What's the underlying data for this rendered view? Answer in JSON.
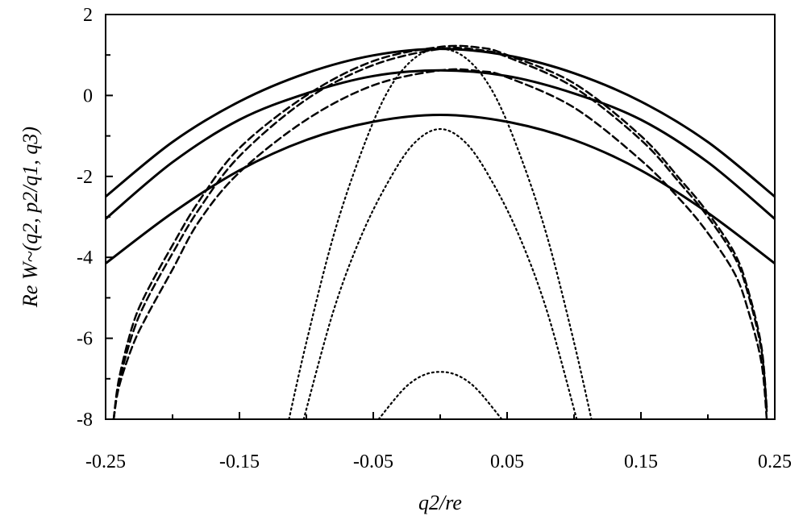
{
  "chart_data": {
    "type": "line",
    "title": "",
    "xlabel": "q2/re",
    "ylabel": "Re W~(q2, p2/q1, q3)",
    "xlim": [
      -0.25,
      0.25
    ],
    "ylim": [
      -8,
      2
    ],
    "xticks": [
      "-0.25",
      "-0.15",
      "-0.05",
      "0.05",
      "0.15",
      "0.25"
    ],
    "yticks": [
      "-8",
      "-6",
      "-4",
      "-2",
      "0",
      "2"
    ],
    "grid": false,
    "legend": "none",
    "series": [
      {
        "style": "solid",
        "x": [
          -0.25,
          -0.2,
          -0.15,
          -0.1,
          -0.05,
          0,
          0.05,
          0.1,
          0.15,
          0.2,
          0.25
        ],
        "y": [
          -2.5,
          -1.15,
          -0.15,
          0.55,
          0.99,
          1.15,
          0.99,
          0.55,
          -0.15,
          -1.15,
          -2.5
        ]
      },
      {
        "style": "solid",
        "x": [
          -0.25,
          -0.2,
          -0.15,
          -0.1,
          -0.05,
          0,
          0.05,
          0.1,
          0.15,
          0.2,
          0.25
        ],
        "y": [
          -3.05,
          -1.65,
          -0.6,
          0.05,
          0.48,
          0.62,
          0.48,
          0.05,
          -0.6,
          -1.65,
          -3.05
        ]
      },
      {
        "style": "solid",
        "x": [
          -0.25,
          -0.2,
          -0.15,
          -0.1,
          -0.05,
          0,
          0.05,
          0.1,
          0.15,
          0.2,
          0.25
        ],
        "y": [
          -4.15,
          -2.9,
          -1.85,
          -1.1,
          -0.65,
          -0.48,
          -0.65,
          -1.1,
          -1.85,
          -2.9,
          -4.15
        ]
      },
      {
        "style": "dashed",
        "x": [
          -0.244,
          -0.24,
          -0.23,
          -0.22,
          -0.2,
          -0.18,
          -0.15,
          -0.1,
          -0.05,
          0,
          0.03,
          0.05,
          0.1,
          0.15,
          0.18,
          0.2,
          0.22,
          0.23,
          0.24,
          0.244
        ],
        "y": [
          -8,
          -7.1,
          -5.9,
          -5.1,
          -3.9,
          -2.8,
          -1.5,
          -0.1,
          0.75,
          1.15,
          1.12,
          0.95,
          0.2,
          -1.1,
          -2.2,
          -3.0,
          -4.0,
          -4.9,
          -6.3,
          -7.8
        ]
      },
      {
        "style": "dashed",
        "x": [
          -0.244,
          -0.24,
          -0.23,
          -0.22,
          -0.2,
          -0.18,
          -0.15,
          -0.1,
          -0.05,
          0,
          0.03,
          0.05,
          0.1,
          0.15,
          0.18,
          0.2,
          0.22,
          0.23,
          0.24,
          0.244
        ],
        "y": [
          -8,
          -7.0,
          -5.7,
          -4.9,
          -3.7,
          -2.6,
          -1.3,
          0.0,
          0.85,
          1.2,
          1.18,
          1.0,
          0.3,
          -1.0,
          -2.1,
          -2.9,
          -3.9,
          -4.8,
          -6.2,
          -7.7
        ]
      },
      {
        "style": "dashed",
        "x": [
          -0.244,
          -0.24,
          -0.23,
          -0.22,
          -0.2,
          -0.18,
          -0.15,
          -0.1,
          -0.05,
          0,
          0.03,
          0.05,
          0.1,
          0.15,
          0.18,
          0.2,
          0.22,
          0.23,
          0.24,
          0.244
        ],
        "y": [
          -8,
          -7.2,
          -6.2,
          -5.5,
          -4.3,
          -3.1,
          -1.9,
          -0.6,
          0.25,
          0.62,
          0.6,
          0.45,
          -0.3,
          -1.6,
          -2.6,
          -3.4,
          -4.4,
          -5.3,
          -6.6,
          -8
        ]
      },
      {
        "style": "dotted",
        "x": [
          -0.113,
          -0.1,
          -0.08,
          -0.06,
          -0.04,
          -0.02,
          0,
          0.02,
          0.04,
          0.06,
          0.08,
          0.1,
          0.113
        ],
        "y": [
          -8,
          -6.1,
          -3.5,
          -1.5,
          0.05,
          0.9,
          1.15,
          0.9,
          0.05,
          -1.5,
          -3.5,
          -6.1,
          -8
        ]
      },
      {
        "style": "dotted",
        "x": [
          -0.102,
          -0.08,
          -0.06,
          -0.04,
          -0.02,
          0,
          0.02,
          0.04,
          0.06,
          0.08,
          0.102
        ],
        "y": [
          -8,
          -5.35,
          -3.55,
          -2.2,
          -1.2,
          -0.83,
          -1.2,
          -2.2,
          -3.55,
          -5.35,
          -8
        ]
      },
      {
        "style": "dotted",
        "x": [
          -0.046,
          -0.03,
          -0.02,
          -0.01,
          0,
          0.01,
          0.02,
          0.03,
          0.046
        ],
        "y": [
          -8,
          -7.35,
          -7.05,
          -6.88,
          -6.83,
          -6.88,
          -7.05,
          -7.35,
          -8
        ]
      }
    ]
  }
}
